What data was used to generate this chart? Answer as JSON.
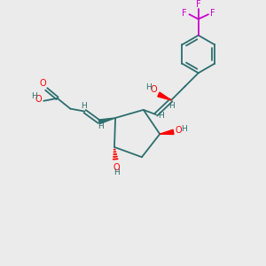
{
  "background_color": "#ebebeb",
  "bond_color": "#2d6e6e",
  "oh_color": "#ff0000",
  "cf3_color": "#cc00cc",
  "atom_label_color": "#2d6e6e",
  "lw": 1.3,
  "fs": 7.0,
  "fig_w": 3.0,
  "fig_h": 3.0,
  "dpi": 100,
  "xlim": [
    0,
    10
  ],
  "ylim": [
    0,
    10
  ]
}
